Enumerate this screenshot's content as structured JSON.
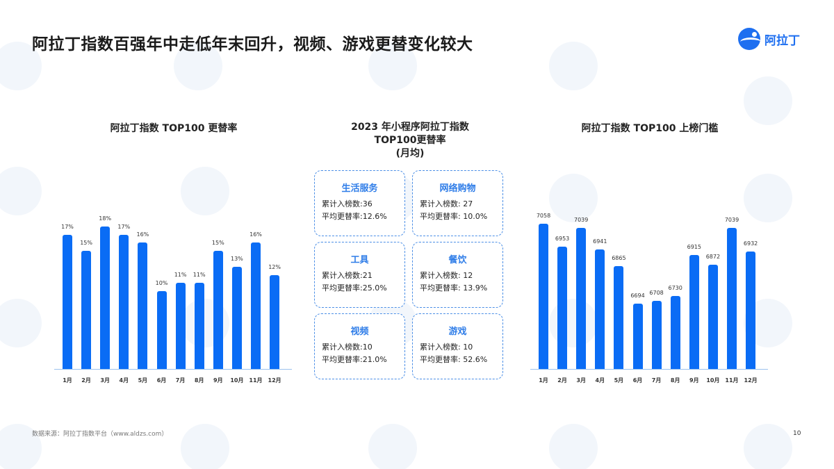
{
  "header": {
    "title": "阿拉丁指数百强年中走低年末回升，视频、游戏更替变化较大",
    "logo_text": "阿拉丁"
  },
  "chart_data": [
    {
      "type": "bar",
      "title": "阿拉丁指数 TOP100 更替率",
      "categories": [
        "1月",
        "2月",
        "3月",
        "4月",
        "5月",
        "6月",
        "7月",
        "8月",
        "9月",
        "10月",
        "11月",
        "12月"
      ],
      "values": [
        17,
        15,
        18,
        17,
        16,
        10,
        11,
        11,
        15,
        13,
        16,
        12
      ],
      "value_labels": [
        "17%",
        "15%",
        "18%",
        "17%",
        "16%",
        "10%",
        "11%",
        "11%",
        "15%",
        "13%",
        "16%",
        "12%"
      ],
      "unit": "%",
      "xlabel": "",
      "ylabel": "",
      "grid": false,
      "bar_color": "#0a6cf5"
    },
    {
      "type": "bar",
      "title": "阿拉丁指数 TOP100 上榜门槛",
      "categories": [
        "1月",
        "2月",
        "3月",
        "4月",
        "5月",
        "6月",
        "7月",
        "8月",
        "9月",
        "10月",
        "11月",
        "12月"
      ],
      "values": [
        7058,
        6953,
        7039,
        6941,
        6865,
        6694,
        6708,
        6730,
        6915,
        6872,
        7039,
        6932
      ],
      "value_labels": [
        "7058",
        "6953",
        "7039",
        "6941",
        "6865",
        "6694",
        "6708",
        "6730",
        "6915",
        "6872",
        "7039",
        "6932"
      ],
      "xlabel": "",
      "ylabel": "",
      "grid": false,
      "bar_color": "#0a6cf5"
    }
  ],
  "middle": {
    "title_line1": "2023 年小程序阿拉丁指数",
    "title_line2": "TOP100更替率",
    "title_line3": "(月均)",
    "cards": [
      {
        "name": "生活服务",
        "count_label": "累计入榜数:36",
        "rate_label": "平均更替率:12.6%"
      },
      {
        "name": "网络购物",
        "count_label": "累计入榜数: 27",
        "rate_label": "平均更替率: 10.0%"
      },
      {
        "name": "工具",
        "count_label": "累计入榜数:21",
        "rate_label": "平均更替率:25.0%"
      },
      {
        "name": "餐饮",
        "count_label": "累计入榜数: 12",
        "rate_label": "平均更替率: 13.9%"
      },
      {
        "name": "视频",
        "count_label": "累计入榜数:10",
        "rate_label": "平均更替率:21.0%"
      },
      {
        "name": "游戏",
        "count_label": "累计入榜数: 10",
        "rate_label": "平均更替率: 52.6%"
      }
    ]
  },
  "footer": {
    "source": "数据来源：阿拉丁指数平台（www.aldzs.com）",
    "page_number": "10"
  },
  "colors": {
    "accent": "#0a6cf5",
    "card_title": "#2f7de8",
    "card_border": "#4a8ee6"
  }
}
